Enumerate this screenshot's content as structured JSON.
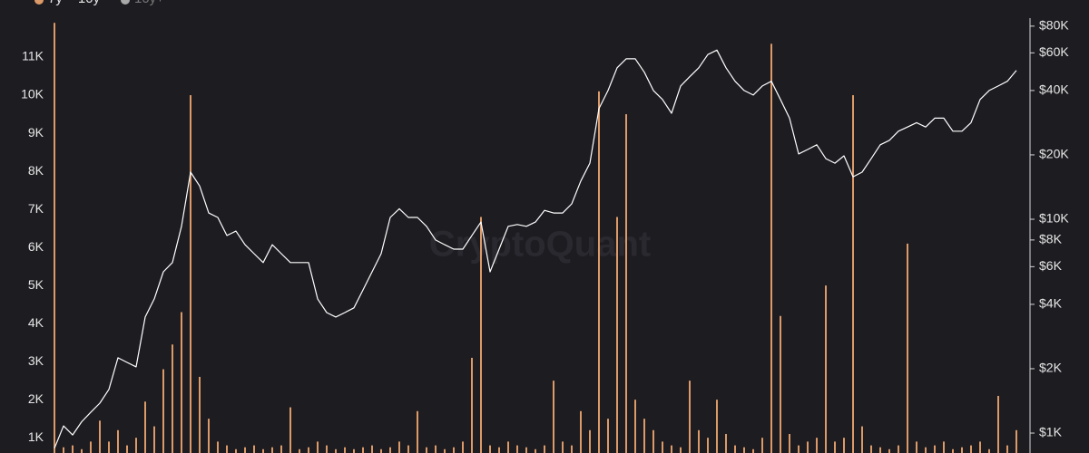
{
  "chart_data": {
    "type": "bar_line",
    "watermark": "CryptoQuant",
    "categories": [
      null,
      null,
      null,
      null,
      null,
      null,
      null,
      null,
      null,
      null,
      null,
      null,
      null,
      null,
      null,
      null,
      null,
      null,
      null,
      null,
      null,
      null,
      null,
      null,
      null,
      null,
      null,
      null,
      null,
      null,
      null,
      null,
      null,
      null,
      null,
      null,
      null,
      null,
      null,
      null,
      null,
      null,
      null,
      null,
      null,
      null,
      null,
      null,
      null,
      null,
      null,
      null,
      null,
      null,
      null,
      null,
      null,
      null,
      null,
      null,
      null,
      null,
      null,
      null,
      null,
      null,
      null,
      null,
      null,
      null,
      null,
      null,
      null,
      null,
      null,
      null,
      null,
      null,
      null,
      null,
      null,
      null,
      null,
      null,
      null,
      null,
      null,
      null,
      null,
      null,
      null,
      null,
      null,
      null,
      null,
      null,
      null,
      null,
      null,
      null,
      null,
      null,
      null,
      null,
      null,
      null,
      null
    ],
    "series": [
      {
        "name": "7y ~ 10y",
        "type": "bar",
        "axis": "y",
        "color": "#dc9a68",
        "values": [
          11900,
          750,
          800,
          700,
          900,
          1450,
          900,
          1200,
          800,
          1000,
          1950,
          1300,
          2800,
          3450,
          4300,
          10000,
          2600,
          1500,
          900,
          800,
          700,
          750,
          800,
          700,
          750,
          800,
          1800,
          700,
          750,
          900,
          800,
          700,
          750,
          700,
          750,
          800,
          700,
          750,
          900,
          800,
          1700,
          750,
          800,
          700,
          750,
          900,
          3100,
          6800,
          800,
          750,
          900,
          800,
          750,
          700,
          800,
          2500,
          900,
          800,
          1700,
          1200,
          10100,
          1500,
          6800,
          9500,
          2000,
          1500,
          1200,
          900,
          800,
          750,
          2500,
          1200,
          1000,
          2000,
          1100,
          800,
          750,
          700,
          1000,
          11350,
          4200,
          1100,
          800,
          900,
          1000,
          5000,
          900,
          1000,
          10000,
          1300,
          800,
          750,
          700,
          800,
          6100,
          900,
          750,
          800,
          900,
          700,
          750,
          800,
          900,
          700,
          2100,
          800,
          1200
        ]
      },
      {
        "type": "line",
        "axis": "y2",
        "color": "#ffffff",
        "values": [
          850,
          1080,
          980,
          1130,
          1250,
          1380,
          1600,
          2250,
          2140,
          2040,
          3490,
          4240,
          5680,
          6270,
          9270,
          16600,
          14300,
          10700,
          10200,
          8400,
          8800,
          7600,
          6900,
          6270,
          7600,
          6900,
          6270,
          6270,
          6270,
          4240,
          3660,
          3490,
          3660,
          3850,
          4670,
          5680,
          6900,
          10200,
          11200,
          10200,
          10200,
          9270,
          8000,
          7600,
          7250,
          7250,
          8400,
          9700,
          5680,
          7250,
          9270,
          9450,
          9270,
          9700,
          11000,
          10700,
          10700,
          11800,
          15100,
          18300,
          32900,
          40000,
          51100,
          56300,
          56300,
          48700,
          40000,
          36300,
          31300,
          42000,
          46400,
          51100,
          58900,
          61800,
          51100,
          44200,
          40000,
          38100,
          42000,
          44200,
          36300,
          29700,
          20200,
          21200,
          22300,
          19200,
          18300,
          19800,
          15800,
          16600,
          19200,
          22300,
          23400,
          25800,
          27000,
          28300,
          27000,
          29700,
          29700,
          25800,
          25800,
          28300,
          36300,
          40000,
          42000,
          44200,
          49600
        ]
      }
    ],
    "hidden_series": [
      {
        "name": "10y+",
        "color": "#a8a8a8"
      }
    ],
    "ylim": [
      600,
      12500
    ],
    "yticks": [
      {
        "value": 1000,
        "label": "1K"
      },
      {
        "value": 2000,
        "label": "2K"
      },
      {
        "value": 3000,
        "label": "3K"
      },
      {
        "value": 4000,
        "label": "4K"
      },
      {
        "value": 5000,
        "label": "5K"
      },
      {
        "value": 6000,
        "label": "6K"
      },
      {
        "value": 7000,
        "label": "7K"
      },
      {
        "value": 8000,
        "label": "8K"
      },
      {
        "value": 9000,
        "label": "9K"
      },
      {
        "value": 10000,
        "label": "10K"
      },
      {
        "value": 11000,
        "label": "11K"
      }
    ],
    "y2lim": [
      807,
      106000
    ],
    "y2scale": "log",
    "y2ticks": [
      {
        "value": 1000,
        "label": "$1K"
      },
      {
        "value": 2000,
        "label": "$2K"
      },
      {
        "value": 4000,
        "label": "$4K"
      },
      {
        "value": 6000,
        "label": "$6K"
      },
      {
        "value": 8000,
        "label": "$8K"
      },
      {
        "value": 10000,
        "label": "$10K"
      },
      {
        "value": 20000,
        "label": "$20K"
      },
      {
        "value": 40000,
        "label": "$40K"
      },
      {
        "value": 60000,
        "label": "$60K"
      },
      {
        "value": 80000,
        "label": "$80K"
      }
    ],
    "grid": false
  }
}
